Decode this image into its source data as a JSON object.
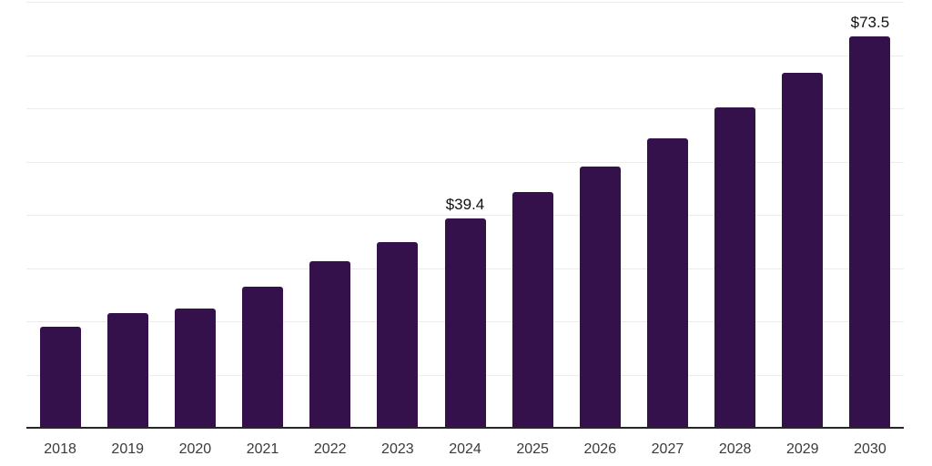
{
  "chart_data": {
    "type": "bar",
    "categories": [
      "2018",
      "2019",
      "2020",
      "2021",
      "2022",
      "2023",
      "2024",
      "2025",
      "2026",
      "2027",
      "2028",
      "2029",
      "2030"
    ],
    "values": [
      18.9,
      21.6,
      22.4,
      26.5,
      31.2,
      34.9,
      39.4,
      44.2,
      49.0,
      54.3,
      60.2,
      66.7,
      73.5
    ],
    "annotations": [
      {
        "category": "2024",
        "text": "$39.4"
      },
      {
        "category": "2030",
        "text": "$73.5"
      }
    ],
    "title": "",
    "xlabel": "",
    "ylabel": "",
    "ylim": [
      0,
      80
    ],
    "grid": "horizontal gridlines every 10, no y-axis tick labels",
    "legend": "none",
    "bar_color": "#35114C",
    "axis_line_color": "#262626",
    "gridline_color": "#ececec",
    "x_label_color": "#3a3a3a",
    "data_label_color": "#111111",
    "background_color": "#ffffff"
  }
}
